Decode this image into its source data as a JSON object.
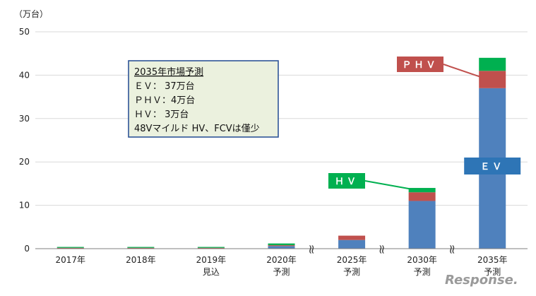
{
  "chart_data": {
    "type": "bar",
    "stacked": true,
    "unit_label": "（万台）",
    "ylim": [
      0,
      50
    ],
    "yticks": [
      "0",
      "10",
      "20",
      "30",
      "40",
      "50"
    ],
    "categories": [
      [
        "2017年"
      ],
      [
        "2018年"
      ],
      [
        "2019年",
        "見込"
      ],
      [
        "2020年",
        "予測"
      ],
      [
        "2025年",
        "予測"
      ],
      [
        "2030年",
        "予測"
      ],
      [
        "2035年",
        "予測"
      ]
    ],
    "series": [
      {
        "name": "EV",
        "color": "#4f81bd",
        "values": [
          0.1,
          0.1,
          0.1,
          0.6,
          2.0,
          11.0,
          37.0
        ]
      },
      {
        "name": "PHV",
        "color": "#c0504d",
        "values": [
          0.1,
          0.1,
          0.1,
          0.2,
          1.0,
          2.0,
          4.0
        ]
      },
      {
        "name": "HV",
        "color": "#00b050",
        "values": [
          0.2,
          0.2,
          0.2,
          0.4,
          0.0,
          1.0,
          3.0
        ]
      }
    ],
    "grid": true,
    "annotation_box": {
      "lines": [
        "2035年市場予測",
        "ＥＶ：  37万台",
        "ＰＨＶ：4万台",
        "ＨＶ：   3万台",
        "48Vマイルド HV、FCVは僅少"
      ]
    },
    "callouts": {
      "phv": {
        "label": "ＰＨＶ",
        "color": "#c0504d"
      },
      "hv": {
        "label": "ＨＶ",
        "color": "#00b050"
      },
      "ev": {
        "label": "ＥＶ",
        "color": "#2e75b6"
      }
    },
    "break_marks": "≈"
  },
  "watermark": "Response."
}
